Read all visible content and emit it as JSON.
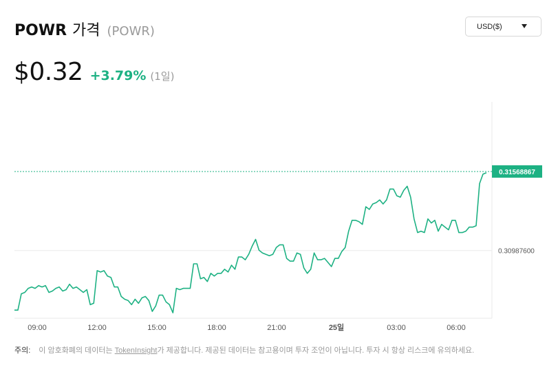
{
  "header": {
    "coin_name": "POWR",
    "price_word": "가격",
    "symbol": "(POWR)"
  },
  "currency_select": {
    "selected": "USD($)"
  },
  "price": {
    "value": "$0.32",
    "change": "+3.79%",
    "period": "(1일)"
  },
  "colors": {
    "line": "#1db183",
    "up": "#1db183",
    "grid": "#e8e8e8",
    "axis_text": "#555555"
  },
  "chart_data": {
    "type": "line",
    "title": "",
    "xlabel": "",
    "ylabel": "",
    "x_tick_labels": [
      "09:00",
      "12:00",
      "15:00",
      "18:00",
      "21:00",
      "25일",
      "03:00",
      "06:00"
    ],
    "y_tick_labels": [
      "0.30987600"
    ],
    "current_value_label": "0.31568867",
    "current_value": 0.31568867,
    "ylim": [
      0.3049,
      0.3208
    ],
    "grid": true,
    "series": [
      {
        "values": [
          0.3055,
          0.3055,
          0.3067,
          0.3068,
          0.3071,
          0.3072,
          0.3071,
          0.3073,
          0.3072,
          0.3073,
          0.3068,
          0.3069,
          0.3071,
          0.3072,
          0.3069,
          0.307,
          0.3074,
          0.3071,
          0.3072,
          0.307,
          0.3068,
          0.307,
          0.3059,
          0.306,
          0.3084,
          0.3083,
          0.3084,
          0.308,
          0.3079,
          0.3072,
          0.3072,
          0.3065,
          0.3063,
          0.3062,
          0.3059,
          0.3063,
          0.306,
          0.3064,
          0.3065,
          0.3062,
          0.3054,
          0.3058,
          0.3066,
          0.3066,
          0.3061,
          0.3059,
          0.3053,
          0.3071,
          0.307,
          0.3071,
          0.3071,
          0.3071,
          0.3089,
          0.3089,
          0.3078,
          0.3079,
          0.3076,
          0.3082,
          0.308,
          0.3082,
          0.3082,
          0.3085,
          0.3083,
          0.3088,
          0.3085,
          0.3094,
          0.3094,
          0.3092,
          0.3096,
          0.3102,
          0.3107,
          0.3099,
          0.3097,
          0.3096,
          0.3095,
          0.3096,
          0.3101,
          0.3103,
          0.3103,
          0.3093,
          0.3091,
          0.3091,
          0.3097,
          0.3096,
          0.3086,
          0.3082,
          0.3085,
          0.3097,
          0.3092,
          0.3092,
          0.3093,
          0.309,
          0.3087,
          0.3093,
          0.3093,
          0.3098,
          0.3101,
          0.3113,
          0.3121,
          0.3121,
          0.312,
          0.3118,
          0.3131,
          0.3129,
          0.3133,
          0.3134,
          0.3136,
          0.3133,
          0.3136,
          0.3144,
          0.3144,
          0.3139,
          0.3138,
          0.3143,
          0.3146,
          0.3138,
          0.3122,
          0.3112,
          0.3113,
          0.3112,
          0.3122,
          0.3119,
          0.3121,
          0.3113,
          0.3118,
          0.3116,
          0.3114,
          0.3121,
          0.3121,
          0.3112,
          0.3112,
          0.3113,
          0.3116,
          0.3116,
          0.3117,
          0.3148,
          0.3155,
          0.3156
        ]
      }
    ]
  },
  "disclaimer": {
    "label": "주의:",
    "text_before": "이 암호화폐의 데이터는",
    "link": "TokenInsight",
    "text_after": "가 제공합니다. 제공된 데이터는 참고용이며 투자 조언이 아닙니다. 투자 시 항상 리스크에 유의하세요."
  }
}
